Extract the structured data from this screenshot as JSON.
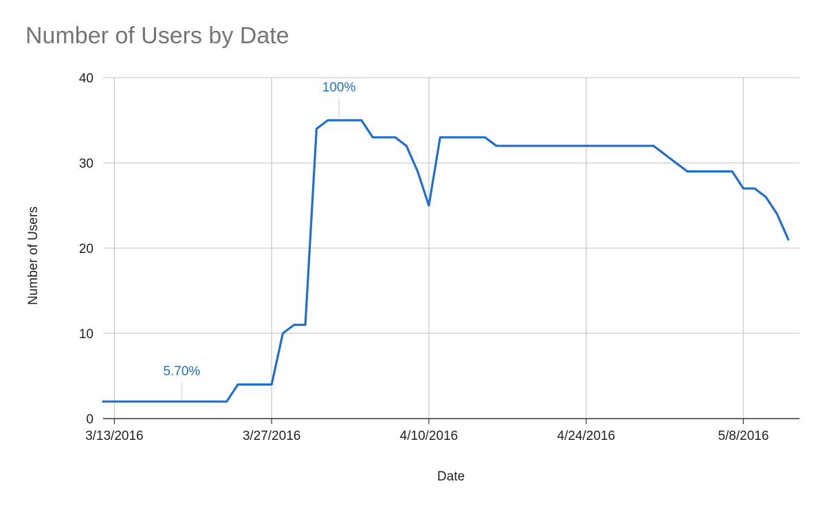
{
  "chart_data": {
    "type": "line",
    "title": "Number of Users by Date",
    "xlabel": "Date",
    "ylabel": "Number of Users",
    "ylim": [
      0,
      40
    ],
    "yticks": [
      0,
      10,
      20,
      30,
      40
    ],
    "xlim": [
      "3/12/2016",
      "5/13/2016"
    ],
    "xticks": [
      "3/13/2016",
      "3/27/2016",
      "4/10/2016",
      "4/24/2016",
      "5/8/2016"
    ],
    "grid": true,
    "legend": "none",
    "line_color": "#1f6fcf",
    "series": [
      {
        "x": [
          "3/12/2016",
          "3/23/2016",
          "3/24/2016",
          "3/25/2016",
          "3/26/2016",
          "3/27/2016",
          "3/28/2016",
          "3/29/2016",
          "3/30/2016",
          "3/31/2016",
          "4/1/2016",
          "4/2/2016",
          "4/3/2016",
          "4/4/2016",
          "4/5/2016",
          "4/6/2016",
          "4/7/2016",
          "4/8/2016",
          "4/9/2016",
          "4/10/2016",
          "4/11/2016",
          "4/12/2016",
          "4/13/2016",
          "4/14/2016",
          "4/15/2016",
          "4/16/2016",
          "4/17/2016",
          "4/30/2016",
          "5/3/2016",
          "5/4/2016",
          "5/5/2016",
          "5/6/2016",
          "5/7/2016",
          "5/8/2016",
          "5/9/2016",
          "5/10/2016",
          "5/11/2016",
          "5/12/2016"
        ],
        "y": [
          2,
          2,
          4,
          4,
          4,
          4,
          10,
          11,
          11,
          34,
          35,
          35,
          35,
          35,
          33,
          33,
          33,
          32,
          29,
          25,
          33,
          33,
          33,
          33,
          33,
          32,
          32,
          32,
          29,
          29,
          29,
          29,
          29,
          27,
          27,
          26,
          24,
          21
        ]
      }
    ],
    "annotations": [
      {
        "text": "5.70%",
        "x": "3/19/2016",
        "y": 2,
        "color": "#1f6fcf"
      },
      {
        "text": "100%",
        "x": "4/2/2016",
        "y": 35,
        "color": "#1f6fcf"
      }
    ]
  }
}
